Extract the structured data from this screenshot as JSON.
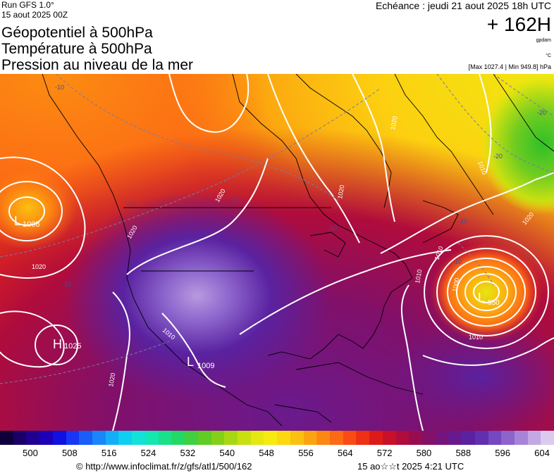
{
  "header": {
    "run": "Run GFS 1.0°",
    "run_date": "15 aout 2025 00Z",
    "titles": [
      "Géopotentiel à 500hPa",
      "Température à 500hPa",
      "Pression au niveau de la mer"
    ],
    "echeance": "Echéance : jeudi 21 aout 2025 18h UTC",
    "hour": "+ 162H",
    "unit_geo": "gpdam",
    "unit_temp": "°C",
    "maxmin": "[Max 1027.4 | Min 949.8] hPa"
  },
  "map": {
    "pressure_centers": [
      {
        "type": "L",
        "value": "1008"
      },
      {
        "type": "H",
        "value": "1025"
      },
      {
        "type": "L",
        "value": "1009"
      },
      {
        "type": "L",
        "value": "950"
      }
    ],
    "isobar_labels": [
      "1020",
      "1020",
      "1020",
      "1020",
      "1020",
      "1020",
      "1010",
      "1010",
      "1010",
      "1010",
      "1000",
      "1010",
      "1020"
    ],
    "temperature_labels": [
      "-20",
      "-10",
      "-10",
      "-10",
      "-10",
      "-10",
      "-10",
      "-20",
      "-10"
    ]
  },
  "legend": {
    "ticks": [
      "500",
      "508",
      "516",
      "524",
      "532",
      "540",
      "548",
      "556",
      "564",
      "572",
      "580",
      "588",
      "596",
      "604"
    ],
    "colors": [
      "#10003a",
      "#1a0066",
      "#20008e",
      "#1c00b8",
      "#1010e0",
      "#1836f4",
      "#1a5ef8",
      "#1a86fa",
      "#14aef8",
      "#10cef0",
      "#12e2d8",
      "#16e6b0",
      "#1ae08a",
      "#24d866",
      "#40d040",
      "#60cc24",
      "#84d018",
      "#a8d814",
      "#c8e012",
      "#e4e810",
      "#f6ea10",
      "#fcd810",
      "#fcc010",
      "#fca410",
      "#fc8812",
      "#fc6a14",
      "#f84c14",
      "#ee3014",
      "#de1a18",
      "#c81028",
      "#b00c3c",
      "#9a0c52",
      "#841068",
      "#74147c",
      "#661a8e",
      "#5a22a0",
      "#6030b0",
      "#7448c0",
      "#8c64cc",
      "#a884d8",
      "#c4a8e4",
      "#dccaee"
    ]
  },
  "footer": {
    "url": "© http://www.infoclimat.fr/z/gfs/atl1/500/162",
    "timestamp": "15 ao☆☆t 2025  4:21 UTC"
  }
}
